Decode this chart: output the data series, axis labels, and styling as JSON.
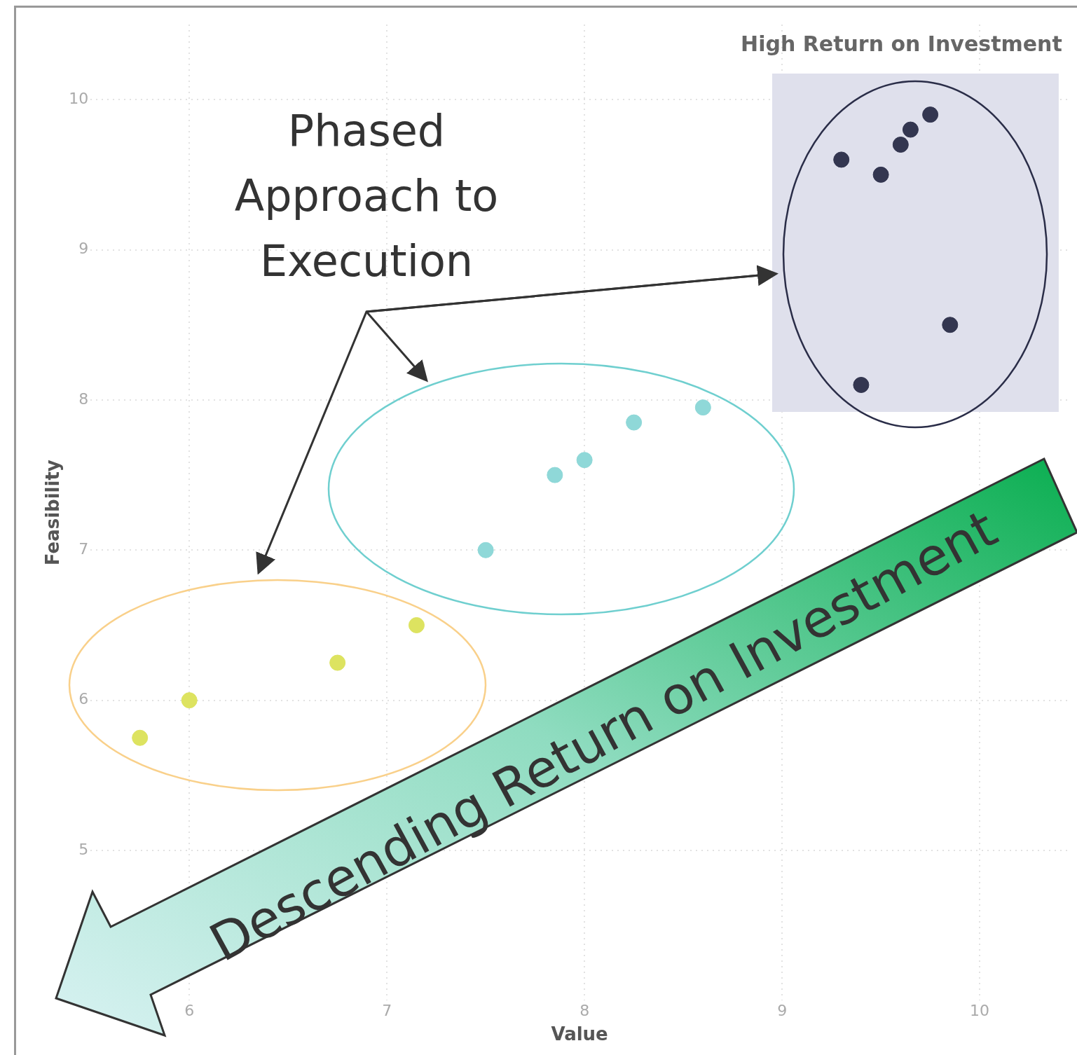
{
  "chart_data": {
    "type": "scatter",
    "xlabel": "Value",
    "ylabel": "Feasibility",
    "xlim": [
      5.5,
      10.45
    ],
    "ylim": [
      4,
      10.5
    ],
    "xticks": [
      6,
      7,
      8,
      9,
      10
    ],
    "yticks": [
      5,
      6,
      7,
      8,
      9,
      10
    ],
    "grid": true,
    "legend": false,
    "marker": "circle",
    "series": [
      {
        "color": "#dde360",
        "x": [
          5.75,
          6,
          6.75,
          7.15
        ],
        "values": [
          5.75,
          6,
          6.25,
          6.5
        ]
      },
      {
        "color": "#8fd8d8",
        "x": [
          7.5,
          7.85,
          8,
          8.25,
          8.6
        ],
        "values": [
          7,
          7.5,
          7.6,
          7.85,
          7.95
        ]
      },
      {
        "color": "#333650",
        "x": [
          9.3,
          9.5,
          9.6,
          9.65,
          9.75,
          9.85,
          9.4
        ],
        "values": [
          9.6,
          9.5,
          9.7,
          9.8,
          9.9,
          8.5,
          8.1
        ]
      }
    ],
    "bands": [
      {
        "axis": "x",
        "from": 8.95,
        "to": 10.4,
        "label": "High Return on Investment",
        "color": "#dfe0ec"
      }
    ],
    "annotations": [
      "Phased Approach to Execution",
      "Descending Return on Investment"
    ]
  }
}
